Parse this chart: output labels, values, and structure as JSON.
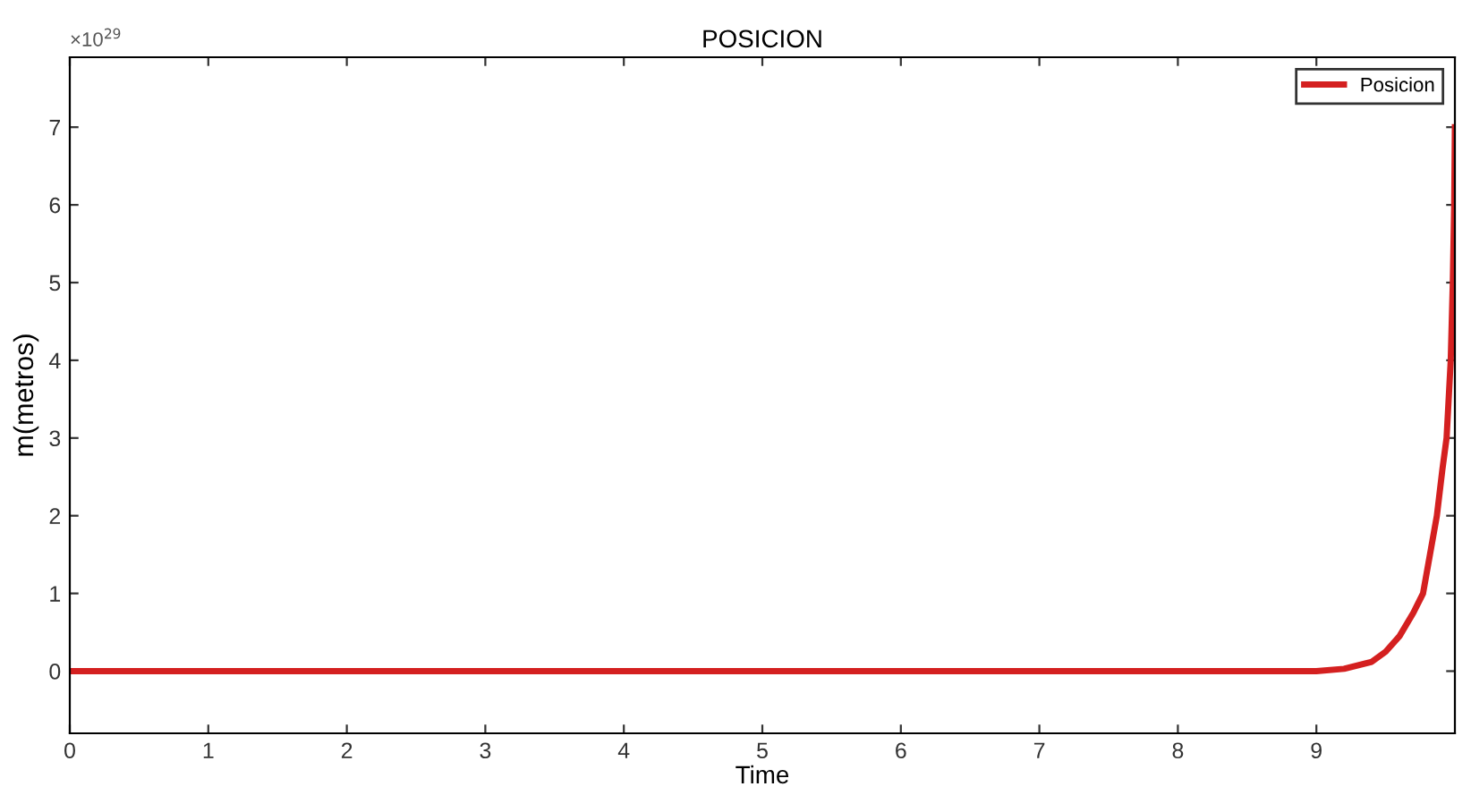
{
  "chart_data": {
    "type": "line",
    "title": "POSICION",
    "xlabel": "Time",
    "ylabel": "m(metros)",
    "annotations": [
      "×10$^{29}$"
    ],
    "xlim": [
      0,
      10
    ],
    "xticks": [
      0,
      1,
      2,
      3,
      4,
      5,
      6,
      7,
      8,
      9
    ],
    "ylim": [
      -0.8,
      7.9
    ],
    "yticks": [
      0,
      1,
      2,
      3,
      4,
      5,
      6,
      7
    ],
    "grid": false,
    "legend": "top right",
    "marker": "none",
    "line_style": "solid",
    "series": [
      {
        "name": "Posicion",
        "color": "#d42020",
        "x": [
          0,
          9,
          9.2,
          9.4,
          9.5,
          9.6,
          9.7,
          9.77,
          9.82,
          9.87,
          9.91,
          9.94,
          9.97,
          9.985,
          9.995,
          10
        ],
        "values": [
          0,
          0,
          0.03,
          0.12,
          0.25,
          0.45,
          0.75,
          1.0,
          1.5,
          2.0,
          2.6,
          3.0,
          4.0,
          5.0,
          6.0,
          7.0
        ]
      }
    ]
  }
}
